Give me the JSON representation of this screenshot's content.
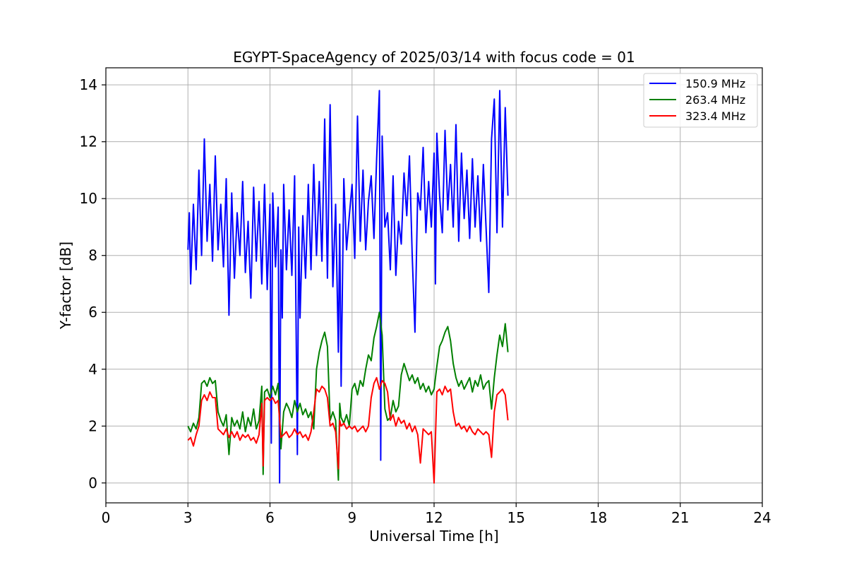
{
  "chart_data": {
    "type": "line",
    "title": "EGYPT-SpaceAgency of 2025/03/14 with focus code = 01",
    "xlabel": "Universal Time [h]",
    "ylabel": "Y-factor [dB]",
    "xlim": [
      0,
      24
    ],
    "ylim": [
      -0.7,
      14.6
    ],
    "xticks": [
      0,
      3,
      6,
      9,
      12,
      15,
      18,
      21,
      24
    ],
    "yticks": [
      0,
      2,
      4,
      6,
      8,
      10,
      12,
      14
    ],
    "grid": true,
    "legend_position": "top-right",
    "series": [
      {
        "name": "150.9 MHz",
        "color": "#0000ff",
        "x": [
          3.0,
          3.05,
          3.1,
          3.2,
          3.3,
          3.4,
          3.5,
          3.6,
          3.7,
          3.8,
          3.9,
          4.0,
          4.1,
          4.2,
          4.3,
          4.4,
          4.5,
          4.6,
          4.7,
          4.8,
          4.9,
          5.0,
          5.1,
          5.2,
          5.3,
          5.4,
          5.5,
          5.6,
          5.7,
          5.8,
          5.9,
          6.0,
          6.05,
          6.1,
          6.2,
          6.3,
          6.35,
          6.4,
          6.45,
          6.5,
          6.6,
          6.7,
          6.8,
          6.9,
          7.0,
          7.05,
          7.1,
          7.2,
          7.3,
          7.4,
          7.5,
          7.6,
          7.7,
          7.8,
          7.9,
          8.0,
          8.1,
          8.2,
          8.3,
          8.4,
          8.5,
          8.55,
          8.6,
          8.7,
          8.8,
          8.9,
          9.0,
          9.1,
          9.2,
          9.3,
          9.4,
          9.5,
          9.6,
          9.7,
          9.8,
          9.9,
          10.0,
          10.05,
          10.1,
          10.2,
          10.3,
          10.4,
          10.5,
          10.6,
          10.7,
          10.8,
          10.9,
          11.0,
          11.1,
          11.2,
          11.3,
          11.4,
          11.5,
          11.6,
          11.7,
          11.8,
          11.9,
          12.0,
          12.05,
          12.1,
          12.2,
          12.3,
          12.4,
          12.5,
          12.6,
          12.7,
          12.8,
          12.9,
          13.0,
          13.1,
          13.2,
          13.3,
          13.4,
          13.5,
          13.6,
          13.7,
          13.8,
          13.9,
          14.0,
          14.1,
          14.2,
          14.3,
          14.4,
          14.5,
          14.6,
          14.7
        ],
        "y": [
          8.2,
          9.5,
          7.0,
          9.8,
          7.5,
          11.0,
          8.0,
          12.1,
          8.5,
          10.5,
          7.8,
          11.5,
          8.2,
          9.8,
          7.6,
          10.7,
          5.9,
          10.2,
          7.2,
          9.5,
          8.0,
          10.6,
          7.4,
          9.2,
          6.5,
          10.4,
          7.8,
          9.9,
          7.0,
          10.5,
          6.8,
          9.8,
          1.4,
          10.2,
          7.6,
          9.7,
          0.0,
          8.2,
          5.8,
          10.5,
          7.5,
          9.6,
          7.3,
          10.8,
          1.0,
          9.0,
          5.8,
          9.4,
          7.2,
          10.5,
          7.5,
          11.2,
          8.0,
          10.6,
          7.8,
          12.8,
          7.2,
          13.3,
          6.9,
          9.8,
          4.6,
          9.1,
          3.4,
          10.7,
          8.2,
          9.4,
          10.5,
          7.9,
          12.9,
          8.5,
          11.0,
          8.2,
          9.9,
          10.8,
          8.6,
          11.4,
          13.8,
          0.8,
          12.2,
          9.0,
          9.5,
          7.5,
          10.8,
          7.3,
          9.2,
          8.4,
          10.9,
          9.4,
          11.5,
          8.0,
          5.3,
          10.2,
          9.6,
          11.8,
          8.8,
          10.6,
          9.0,
          11.6,
          7.0,
          12.3,
          10.1,
          8.8,
          12.4,
          9.6,
          11.2,
          9.0,
          12.6,
          8.5,
          11.6,
          9.3,
          11.0,
          8.6,
          11.4,
          9.0,
          10.8,
          8.5,
          11.2,
          9.0,
          6.7,
          12.1,
          13.5,
          8.8,
          13.8,
          9.0,
          13.2,
          10.1
        ],
        "note_visible": "noisy line series"
      },
      {
        "name": "263.4 MHz",
        "color": "#008000",
        "x": [
          3.0,
          3.1,
          3.2,
          3.3,
          3.4,
          3.5,
          3.6,
          3.7,
          3.8,
          3.9,
          4.0,
          4.1,
          4.2,
          4.3,
          4.4,
          4.5,
          4.6,
          4.7,
          4.8,
          4.9,
          5.0,
          5.1,
          5.2,
          5.3,
          5.4,
          5.5,
          5.6,
          5.7,
          5.75,
          5.8,
          5.9,
          6.0,
          6.1,
          6.2,
          6.3,
          6.4,
          6.5,
          6.6,
          6.7,
          6.8,
          6.9,
          7.0,
          7.1,
          7.2,
          7.3,
          7.4,
          7.5,
          7.6,
          7.7,
          7.8,
          7.9,
          8.0,
          8.1,
          8.2,
          8.3,
          8.4,
          8.5,
          8.55,
          8.6,
          8.7,
          8.8,
          8.9,
          9.0,
          9.1,
          9.2,
          9.3,
          9.4,
          9.5,
          9.6,
          9.7,
          9.8,
          9.9,
          10.0,
          10.1,
          10.2,
          10.3,
          10.4,
          10.5,
          10.6,
          10.7,
          10.8,
          10.9,
          11.0,
          11.1,
          11.2,
          11.3,
          11.4,
          11.5,
          11.6,
          11.7,
          11.8,
          11.9,
          12.0,
          12.1,
          12.2,
          12.3,
          12.4,
          12.5,
          12.6,
          12.7,
          12.8,
          12.9,
          13.0,
          13.1,
          13.2,
          13.3,
          13.4,
          13.5,
          13.6,
          13.7,
          13.8,
          13.9,
          14.0,
          14.1,
          14.2,
          14.3,
          14.4,
          14.5,
          14.6,
          14.7
        ],
        "y": [
          2.0,
          1.8,
          2.1,
          1.9,
          2.3,
          3.5,
          3.6,
          3.4,
          3.7,
          3.5,
          3.6,
          2.5,
          2.2,
          2.0,
          2.4,
          1.0,
          2.3,
          2.0,
          2.2,
          1.9,
          2.5,
          1.8,
          2.3,
          2.0,
          2.6,
          1.9,
          2.2,
          3.4,
          0.3,
          3.2,
          3.3,
          3.0,
          3.4,
          3.1,
          3.5,
          1.2,
          2.5,
          2.8,
          2.6,
          2.3,
          2.9,
          2.5,
          2.8,
          2.4,
          2.6,
          2.3,
          2.5,
          1.9,
          4.0,
          4.6,
          5.0,
          5.3,
          4.8,
          2.2,
          2.5,
          2.2,
          0.1,
          2.8,
          2.3,
          2.1,
          2.4,
          2.0,
          3.3,
          3.5,
          3.1,
          3.6,
          3.4,
          4.0,
          4.5,
          4.3,
          5.1,
          5.5,
          6.0,
          5.2,
          2.6,
          2.2,
          2.3,
          2.9,
          2.5,
          2.7,
          3.8,
          4.2,
          3.9,
          3.6,
          3.8,
          3.5,
          3.7,
          3.3,
          3.5,
          3.2,
          3.4,
          3.1,
          3.3,
          4.1,
          4.8,
          5.0,
          5.3,
          5.5,
          5.0,
          4.2,
          3.7,
          3.4,
          3.6,
          3.3,
          3.5,
          3.7,
          3.2,
          3.6,
          3.4,
          3.8,
          3.3,
          3.5,
          3.6,
          2.6,
          3.7,
          4.5,
          5.2,
          4.8,
          5.6,
          4.6
        ],
        "note_visible": "noisy line series"
      },
      {
        "name": "323.4 MHz",
        "color": "#ff0000",
        "x": [
          3.0,
          3.1,
          3.2,
          3.3,
          3.4,
          3.5,
          3.6,
          3.7,
          3.8,
          3.9,
          4.0,
          4.1,
          4.2,
          4.3,
          4.4,
          4.5,
          4.6,
          4.7,
          4.8,
          4.9,
          5.0,
          5.1,
          5.2,
          5.3,
          5.4,
          5.5,
          5.6,
          5.7,
          5.75,
          5.8,
          5.9,
          6.0,
          6.1,
          6.2,
          6.3,
          6.4,
          6.5,
          6.6,
          6.7,
          6.8,
          6.9,
          7.0,
          7.1,
          7.2,
          7.3,
          7.4,
          7.5,
          7.6,
          7.7,
          7.8,
          7.9,
          8.0,
          8.1,
          8.2,
          8.3,
          8.4,
          8.5,
          8.55,
          8.6,
          8.7,
          8.8,
          8.9,
          9.0,
          9.1,
          9.2,
          9.3,
          9.4,
          9.5,
          9.6,
          9.7,
          9.8,
          9.9,
          10.0,
          10.1,
          10.2,
          10.3,
          10.4,
          10.5,
          10.6,
          10.7,
          10.8,
          10.9,
          11.0,
          11.1,
          11.2,
          11.3,
          11.4,
          11.5,
          11.6,
          11.7,
          11.8,
          11.9,
          12.0,
          12.1,
          12.2,
          12.3,
          12.4,
          12.5,
          12.6,
          12.7,
          12.8,
          12.9,
          13.0,
          13.1,
          13.2,
          13.3,
          13.4,
          13.5,
          13.6,
          13.7,
          13.8,
          13.9,
          14.0,
          14.1,
          14.2,
          14.3,
          14.4,
          14.5,
          14.6,
          14.7
        ],
        "y": [
          1.5,
          1.6,
          1.3,
          1.7,
          2.0,
          2.9,
          3.1,
          2.9,
          3.2,
          3.0,
          3.0,
          1.9,
          1.8,
          1.7,
          1.9,
          1.6,
          1.8,
          1.6,
          1.8,
          1.5,
          1.7,
          1.6,
          1.7,
          1.5,
          1.6,
          1.4,
          1.7,
          2.8,
          0.6,
          2.9,
          3.0,
          2.9,
          3.0,
          2.8,
          2.9,
          1.6,
          1.7,
          1.8,
          1.6,
          1.7,
          1.9,
          1.7,
          1.8,
          1.6,
          1.7,
          1.5,
          1.8,
          2.5,
          3.3,
          3.2,
          3.4,
          3.3,
          3.0,
          2.0,
          2.1,
          1.8,
          0.5,
          2.2,
          2.0,
          2.1,
          1.9,
          2.0,
          1.9,
          2.0,
          1.8,
          1.9,
          2.0,
          1.8,
          2.0,
          3.0,
          3.5,
          3.7,
          3.3,
          3.6,
          3.5,
          3.2,
          2.2,
          2.4,
          2.0,
          2.3,
          2.1,
          2.2,
          1.9,
          2.1,
          1.8,
          2.0,
          1.7,
          0.7,
          1.9,
          1.8,
          1.7,
          1.8,
          0.0,
          3.2,
          3.3,
          3.1,
          3.4,
          3.2,
          3.3,
          2.5,
          2.0,
          2.1,
          1.9,
          2.0,
          1.8,
          2.0,
          1.8,
          1.7,
          1.9,
          1.8,
          1.7,
          1.8,
          1.7,
          0.9,
          2.5,
          3.1,
          3.2,
          3.3,
          3.1,
          2.2
        ],
        "note_visible": "noisy line series"
      }
    ]
  }
}
